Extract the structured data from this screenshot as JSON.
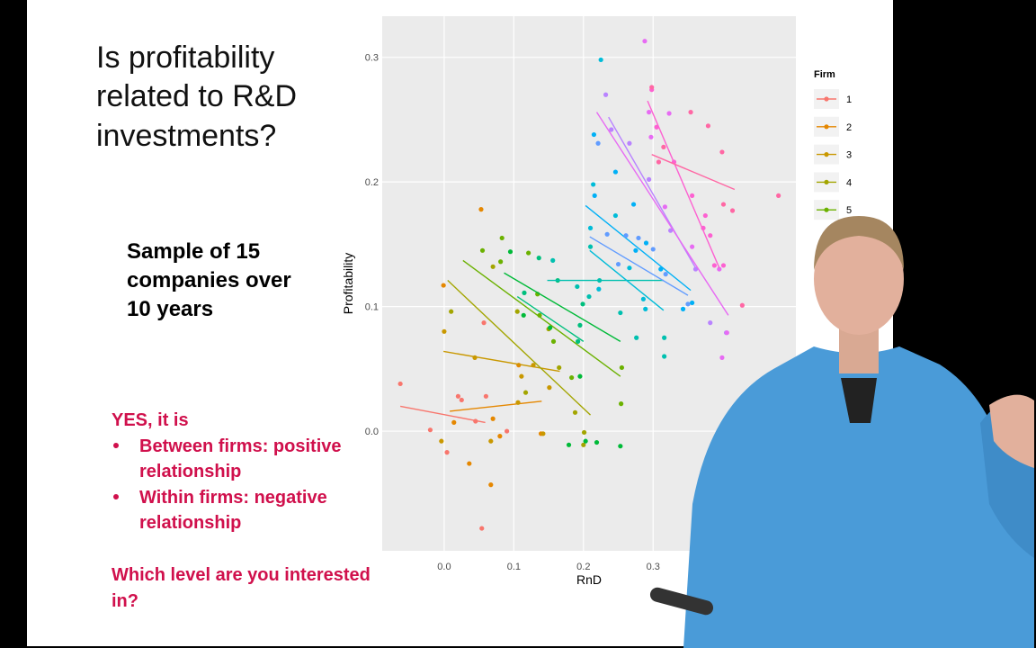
{
  "slide": {
    "title_lines": [
      "Is profitability",
      "related to R&D",
      "investments?"
    ],
    "sample_lines": [
      "Sample of 15",
      "companies over",
      "10 years"
    ],
    "answer": "YES, it is",
    "bullets": [
      [
        "Between firms: positive",
        "relationship"
      ],
      [
        "Within firms: negative",
        "relationship"
      ]
    ],
    "question_lines": [
      "Which level are you interested",
      "in?"
    ]
  },
  "chart_data": {
    "type": "scatter",
    "x_label": "RnD",
    "y_label": "Profitability",
    "legend_title": "Firm",
    "legend": "right",
    "xlim": [
      -0.089,
      0.505
    ],
    "ylim": [
      -0.096,
      0.333
    ],
    "xticks": [
      {
        "value": 0,
        "label": "0.0"
      },
      0.1,
      0.2,
      0.3
    ],
    "yticks": [
      {
        "value": 0,
        "label": "0.0"
      },
      0.1,
      0.2,
      0.3
    ],
    "grid": true,
    "series": [
      {
        "name": "1",
        "color": "#F8766D",
        "x": [
          -0.063,
          -0.02,
          0.004,
          0.02,
          0.025,
          0.045,
          0.057,
          0.054,
          0.06,
          0.09
        ],
        "values": [
          0.038,
          0.001,
          -0.017,
          0.028,
          0.025,
          0.008,
          0.087,
          -0.078,
          0.028,
          0.0
        ],
        "fit": {
          "x": [
            -0.063,
            0.059
          ],
          "values": [
            0.02,
            0.007
          ]
        }
      },
      {
        "name": "2",
        "color": "#E58700",
        "x": [
          -0.001,
          0.053,
          0.014,
          0.036,
          0.067,
          0.08,
          0.07,
          0.107,
          0.139
        ],
        "values": [
          0.117,
          0.178,
          0.007,
          -0.026,
          -0.043,
          -0.004,
          0.01,
          0.053,
          -0.002
        ],
        "fit": {
          "x": [
            0.008,
            0.14
          ],
          "values": [
            0.016,
            0.024
          ]
        }
      },
      {
        "name": "3",
        "color": "#C99800",
        "x": [
          0.044,
          0.106,
          0.111,
          0.128,
          0.151,
          0.0,
          -0.004,
          0.067,
          0.142
        ],
        "values": [
          0.059,
          0.023,
          0.044,
          0.053,
          0.035,
          0.08,
          -0.008,
          -0.008,
          -0.002
        ],
        "fit": {
          "x": [
            -0.001,
            0.166
          ],
          "values": [
            0.064,
            0.048
          ]
        }
      },
      {
        "name": "4",
        "color": "#A3A500",
        "x": [
          0.01,
          0.07,
          0.105,
          0.117,
          0.165,
          0.188,
          0.201,
          0.2,
          0.15
        ],
        "values": [
          0.096,
          0.132,
          0.096,
          0.031,
          0.051,
          0.015,
          -0.001,
          -0.011,
          0.082
        ],
        "fit": {
          "x": [
            0.005,
            0.21
          ],
          "values": [
            0.121,
            0.013
          ]
        }
      },
      {
        "name": "5",
        "color": "#6BB100",
        "x": [
          0.055,
          0.081,
          0.083,
          0.121,
          0.134,
          0.157,
          0.183,
          0.254,
          0.255,
          0.137
        ],
        "values": [
          0.145,
          0.136,
          0.155,
          0.143,
          0.11,
          0.072,
          0.043,
          0.022,
          0.051,
          0.093
        ],
        "fit": {
          "x": [
            0.027,
            0.253
          ],
          "values": [
            0.137,
            0.044
          ]
        }
      },
      {
        "color": "#00BA38",
        "x": [
          0.095,
          0.114,
          0.152,
          0.179,
          0.219,
          0.253,
          0.203,
          0.195
        ],
        "values": [
          0.144,
          0.093,
          0.083,
          -0.011,
          -0.009,
          -0.012,
          -0.008,
          0.044
        ],
        "fit": {
          "x": [
            0.086,
            0.253
          ],
          "values": [
            0.127,
            0.072
          ]
        }
      },
      {
        "color": "#00BF7D",
        "x": [
          0.115,
          0.163,
          0.192,
          0.195,
          0.136,
          0.199
        ],
        "values": [
          0.111,
          0.121,
          0.072,
          0.085,
          0.139,
          0.102
        ],
        "fit": {
          "x": [
            0.105,
            0.2
          ],
          "values": [
            0.108,
            0.072
          ]
        }
      },
      {
        "color": "#00C0AF",
        "x": [
          0.156,
          0.21,
          0.208,
          0.191,
          0.223,
          0.253,
          0.316,
          0.276,
          0.316
        ],
        "values": [
          0.137,
          0.148,
          0.108,
          0.116,
          0.121,
          0.095,
          0.06,
          0.075,
          0.075
        ],
        "fit": {
          "x": [
            0.148,
            0.315
          ],
          "values": [
            0.121,
            0.121
          ]
        }
      },
      {
        "color": "#00BCD8",
        "x": [
          0.225,
          0.214,
          0.266,
          0.286,
          0.289,
          0.246,
          0.222,
          0.21
        ],
        "values": [
          0.298,
          0.198,
          0.131,
          0.106,
          0.098,
          0.173,
          0.114,
          0.163
        ],
        "fit": {
          "x": [
            0.209,
            0.315
          ],
          "values": [
            0.145,
            0.097
          ]
        }
      },
      {
        "color": "#00B0F6",
        "x": [
          0.215,
          0.216,
          0.246,
          0.272,
          0.29,
          0.311,
          0.343,
          0.356,
          0.275
        ],
        "values": [
          0.238,
          0.189,
          0.208,
          0.182,
          0.151,
          0.13,
          0.098,
          0.103,
          0.145
        ],
        "fit": {
          "x": [
            0.203,
            0.354
          ],
          "values": [
            0.181,
            0.113
          ]
        }
      },
      {
        "color": "#619CFF",
        "x": [
          0.221,
          0.234,
          0.261,
          0.279,
          0.3,
          0.318,
          0.35,
          0.25
        ],
        "values": [
          0.231,
          0.158,
          0.157,
          0.155,
          0.146,
          0.126,
          0.102,
          0.134
        ],
        "fit": {
          "x": [
            0.209,
            0.35
          ],
          "values": [
            0.156,
            0.109
          ]
        }
      },
      {
        "color": "#B983FF",
        "x": [
          0.232,
          0.24,
          0.266,
          0.294,
          0.325,
          0.361,
          0.382,
          0.405
        ],
        "values": [
          0.27,
          0.242,
          0.231,
          0.202,
          0.161,
          0.13,
          0.087,
          0.079
        ],
        "fit": {
          "x": [
            0.236,
            0.363
          ],
          "values": [
            0.252,
            0.129
          ]
        }
      },
      {
        "color": "#E76BF3",
        "x": [
          0.288,
          0.294,
          0.297,
          0.317,
          0.356,
          0.395,
          0.399,
          0.406,
          0.323
        ],
        "values": [
          0.313,
          0.256,
          0.236,
          0.18,
          0.148,
          0.13,
          0.059,
          0.079,
          0.255
        ],
        "fit": {
          "x": [
            0.219,
            0.408
          ],
          "values": [
            0.256,
            0.093
          ]
        }
      },
      {
        "color": "#FD61D1",
        "x": [
          0.298,
          0.305,
          0.33,
          0.356,
          0.372,
          0.382,
          0.388,
          0.401,
          0.375
        ],
        "values": [
          0.274,
          0.244,
          0.216,
          0.189,
          0.163,
          0.157,
          0.133,
          0.133,
          0.173
        ],
        "fit": {
          "x": [
            0.292,
            0.395
          ],
          "values": [
            0.265,
            0.131
          ]
        }
      },
      {
        "color": "#FF67A4",
        "x": [
          0.298,
          0.315,
          0.354,
          0.379,
          0.399,
          0.414,
          0.428,
          0.48,
          0.401,
          0.308
        ],
        "values": [
          0.276,
          0.228,
          0.256,
          0.245,
          0.224,
          0.177,
          0.101,
          0.189,
          0.182,
          0.216
        ],
        "fit": {
          "x": [
            0.298,
            0.417
          ],
          "values": [
            0.222,
            0.194
          ]
        }
      }
    ]
  }
}
